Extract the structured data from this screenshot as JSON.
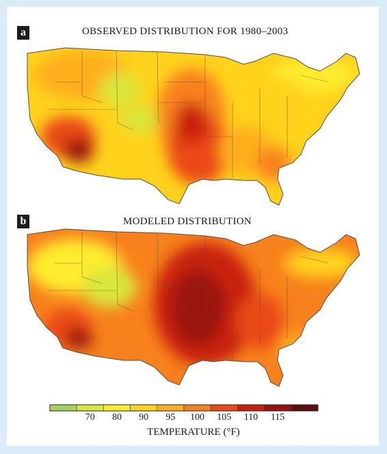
{
  "panels": [
    {
      "letter": "a",
      "title": "OBSERVED DISTRIBUTION FOR 1980–2003"
    },
    {
      "letter": "b",
      "title": "MODELED DISTRIBUTION"
    }
  ],
  "legend": {
    "title": "TEMPERATURE (°F)",
    "ticks": [
      "70",
      "80",
      "90",
      "95",
      "100",
      "105",
      "110",
      "115"
    ],
    "colors": [
      "#a8d35a",
      "#d9e63a",
      "#ffec2e",
      "#ffd21c",
      "#ffae1e",
      "#f7811c",
      "#ea4a16",
      "#c9200e",
      "#9a1210",
      "#630c0c"
    ]
  },
  "map_style": {
    "background": "#d9ecf7",
    "border_color": "#5a4a3a"
  }
}
